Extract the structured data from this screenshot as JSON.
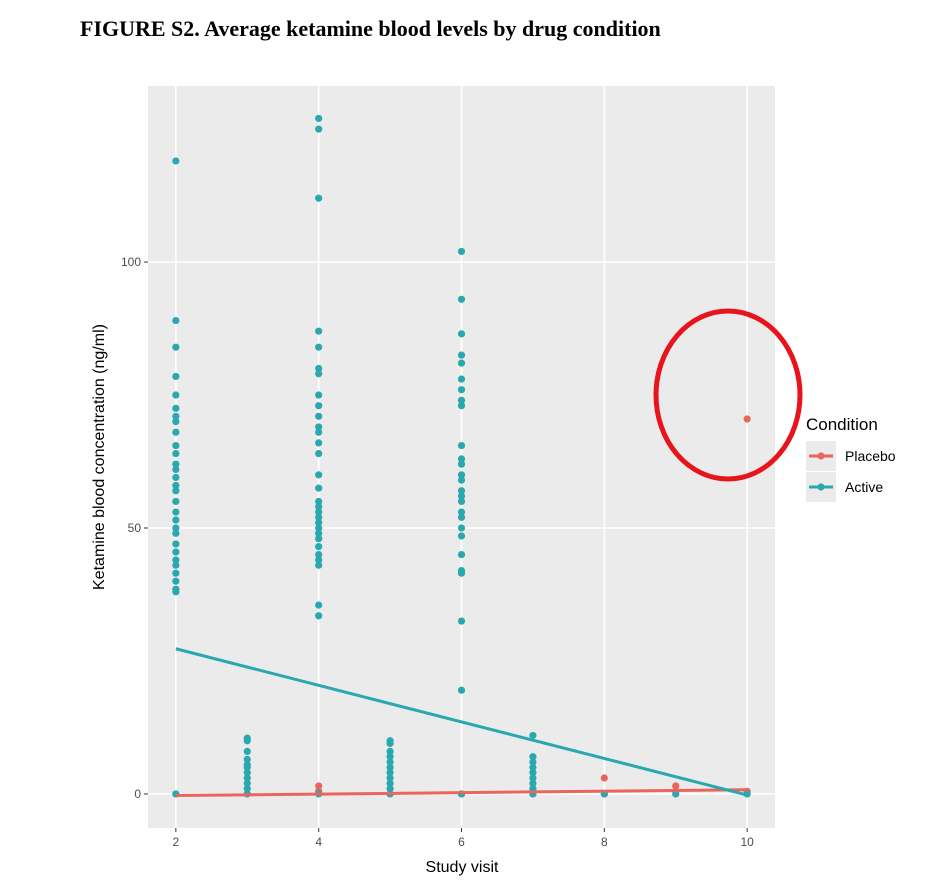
{
  "chart_data": {
    "type": "scatter",
    "title": "FIGURE S2. Average ketamine blood levels by drug condition",
    "x_label": "Study visit",
    "y_label": "Ketamine blood concentration (ng/ml)",
    "legend_title": "Condition",
    "xlim": [
      1.61,
      10.39
    ],
    "ylim": [
      -6.4,
      133.1
    ],
    "xticks": [
      2,
      4,
      6,
      8,
      10
    ],
    "yticks": [
      0,
      50,
      100
    ],
    "grid": true,
    "legend": "right",
    "series": [
      {
        "name": "Placebo",
        "color": "#e8665c",
        "x": [
          2,
          3,
          4,
          4,
          5,
          6,
          7,
          8,
          8,
          9,
          9,
          10,
          10
        ],
        "values": [
          0,
          0,
          1.5,
          0.5,
          0,
          0,
          0,
          3,
          0,
          1.5,
          0.5,
          70.5,
          0.5
        ],
        "fit": {
          "x": [
            2,
            10
          ],
          "values": [
            -0.3,
            0.8
          ]
        }
      },
      {
        "name": "Active",
        "color": "#2aa8b0",
        "x": [
          2,
          2,
          2,
          2,
          2,
          2,
          2,
          2,
          2,
          2,
          2,
          2,
          2,
          2,
          2,
          2,
          2,
          2,
          2,
          2,
          2,
          2,
          2,
          2,
          2,
          2,
          2,
          2,
          2,
          2,
          3,
          3,
          3,
          3,
          3,
          3,
          3,
          3,
          3,
          3,
          3,
          4,
          4,
          4,
          4,
          4,
          4,
          4,
          4,
          4,
          4,
          4,
          4,
          4,
          4,
          4,
          4,
          4,
          4,
          4,
          4,
          4,
          4,
          4,
          4,
          4,
          4,
          4,
          4,
          4,
          4,
          4,
          5,
          5,
          5,
          5,
          5,
          5,
          5,
          5,
          5,
          5,
          5,
          6,
          6,
          6,
          6,
          6,
          6,
          6,
          6,
          6,
          6,
          6,
          6,
          6,
          6,
          6,
          6,
          6,
          6,
          6,
          6,
          6,
          6,
          6,
          6,
          6,
          6,
          6,
          7,
          7,
          7,
          7,
          7,
          7,
          7,
          7,
          7,
          8,
          9,
          10
        ],
        "values": [
          119,
          89,
          84,
          78.5,
          75,
          72.5,
          71,
          70,
          68,
          65.5,
          64,
          62,
          61,
          59.5,
          58,
          57,
          55,
          53,
          51.5,
          50,
          49,
          47,
          45.5,
          44,
          43,
          41.5,
          40,
          38.5,
          38,
          0,
          10.5,
          10,
          8,
          6.5,
          5.5,
          5,
          4,
          3,
          2,
          1,
          0,
          127,
          125,
          112,
          87,
          84,
          80,
          79,
          75,
          73,
          71,
          69,
          68,
          66,
          64,
          60,
          57.5,
          55,
          54,
          53,
          52,
          51,
          50,
          49,
          48,
          46.5,
          45,
          44,
          43,
          35.5,
          33.5,
          0,
          10,
          9.5,
          8,
          7,
          6,
          5,
          4,
          3,
          2,
          1,
          0,
          102,
          93,
          86.5,
          82.5,
          81,
          78,
          76,
          74,
          73,
          65.5,
          63,
          62,
          60,
          59,
          57,
          56,
          55,
          53,
          52,
          50,
          48.5,
          45,
          42,
          41.5,
          32.5,
          19.5,
          0,
          11,
          7,
          6,
          5,
          4,
          3,
          2,
          1,
          0,
          0,
          0,
          0
        ],
        "fit": {
          "x": [
            2,
            10
          ],
          "values": [
            27.3,
            -0.2
          ]
        }
      }
    ]
  }
}
